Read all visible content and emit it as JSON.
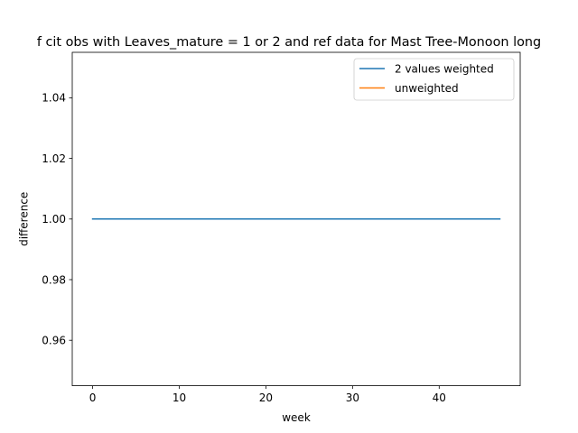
{
  "chart_data": {
    "type": "line",
    "title": "f cit obs with Leaves_mature = 1 or 2 and ref data for Mast Tree-Monoon long",
    "xlabel": "week",
    "ylabel": "difference",
    "xlim": [
      -2.35,
      49.35
    ],
    "ylim": [
      0.945,
      1.055
    ],
    "xticks": [
      0,
      10,
      20,
      30,
      40
    ],
    "xtick_labels": [
      "0",
      "10",
      "20",
      "30",
      "40"
    ],
    "yticks": [
      0.96,
      0.98,
      1.0,
      1.02,
      1.04
    ],
    "ytick_labels": [
      "0.96",
      "0.98",
      "1.00",
      "1.02",
      "1.04"
    ],
    "grid": false,
    "legend_position": "top-right",
    "series": [
      {
        "name": "2 values weighted",
        "color": "#1f77b4",
        "x": [
          0,
          47
        ],
        "y": [
          1.0,
          1.0
        ]
      },
      {
        "name": "unweighted",
        "color": "#ff7f0e",
        "x": [],
        "y": []
      }
    ]
  }
}
